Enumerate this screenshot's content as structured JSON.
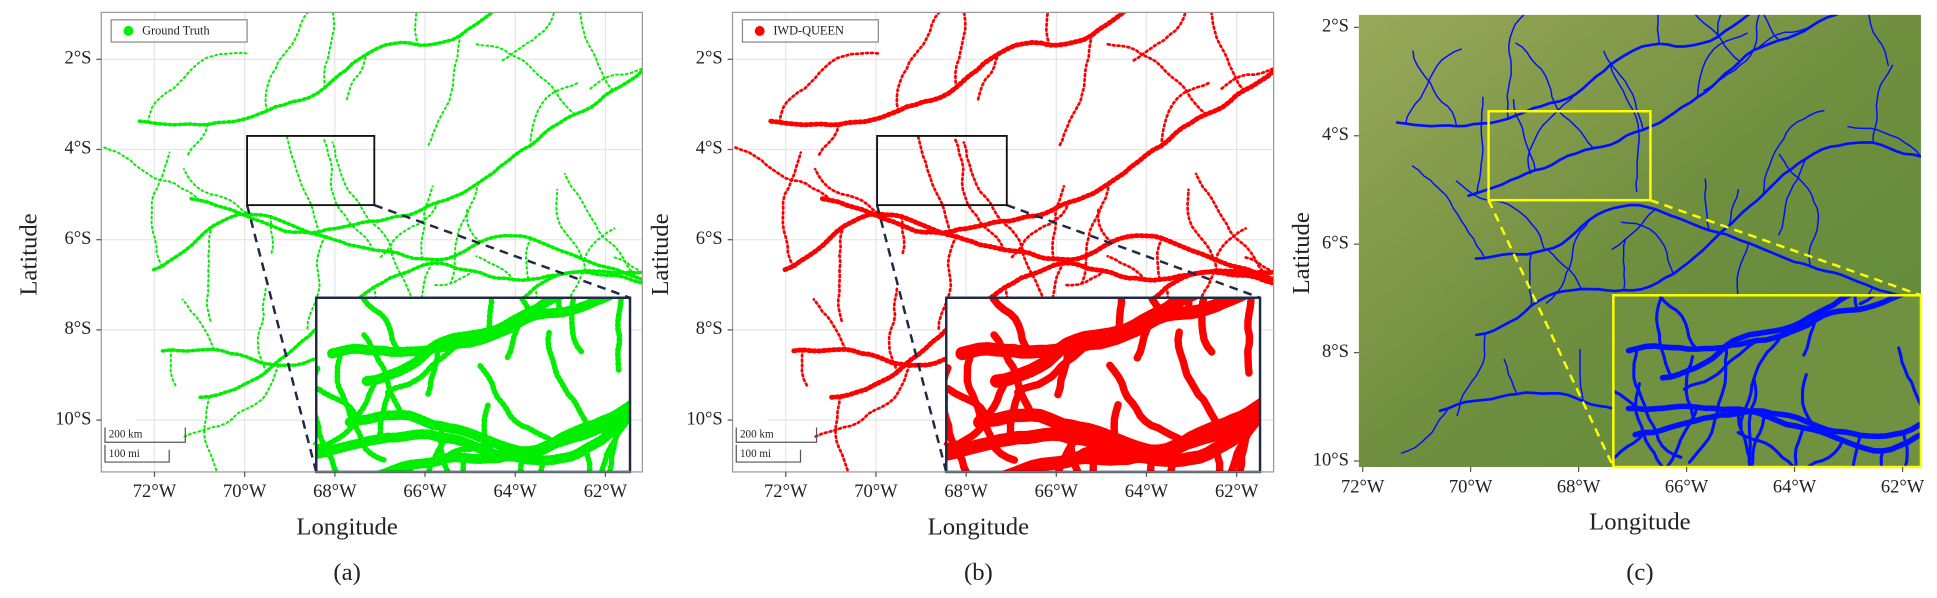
{
  "panels": [
    {
      "type": "map",
      "legend": "Ground Truth",
      "color": "#00ee00",
      "style": "points",
      "xlabel": "Longitude",
      "ylabel": "Latitude",
      "grid": true,
      "xlim": [
        -73.18,
        -61.18
      ],
      "ylim": [
        -11.15,
        -0.96
      ],
      "xticks": [
        {
          "value": -72,
          "label": "72°W"
        },
        {
          "value": -70,
          "label": "70°W"
        },
        {
          "value": -68,
          "label": "68°W"
        },
        {
          "value": -66,
          "label": "66°W"
        },
        {
          "value": -64,
          "label": "64°W"
        },
        {
          "value": -62,
          "label": "62°W"
        }
      ],
      "yticks": [
        {
          "value": -2,
          "label": "2°S"
        },
        {
          "value": -4,
          "label": "4°S"
        },
        {
          "value": -6,
          "label": "6°S"
        },
        {
          "value": -8,
          "label": "8°S"
        },
        {
          "value": -10,
          "label": "10°S"
        }
      ],
      "scale_bar": [
        "200 km",
        "100 mi"
      ],
      "caption": "(a)"
    },
    {
      "type": "map",
      "legend": "IWD-QUEEN",
      "color": "#ff0000",
      "style": "points",
      "xlabel": "Longitude",
      "ylabel": "Latitude",
      "grid": true,
      "xlim": [
        -73.18,
        -61.18
      ],
      "ylim": [
        -11.15,
        -0.96
      ],
      "xticks": [
        {
          "value": -72,
          "label": "72°W"
        },
        {
          "value": -70,
          "label": "70°W"
        },
        {
          "value": -68,
          "label": "68°W"
        },
        {
          "value": -66,
          "label": "66°W"
        },
        {
          "value": -64,
          "label": "64°W"
        },
        {
          "value": -62,
          "label": "62°W"
        }
      ],
      "yticks": [
        {
          "value": -2,
          "label": "2°S"
        },
        {
          "value": -4,
          "label": "4°S"
        },
        {
          "value": -6,
          "label": "6°S"
        },
        {
          "value": -8,
          "label": "8°S"
        },
        {
          "value": -10,
          "label": "10°S"
        }
      ],
      "scale_bar": [
        "200 km",
        "100 mi"
      ],
      "caption": "(b)"
    },
    {
      "type": "terrain",
      "color": "#0010ff",
      "xlabel": "Longitude",
      "ylabel": "Latitude",
      "grid": false,
      "xlim": [
        -72.07,
        -61.66
      ],
      "ylim": [
        -10.11,
        -1.77
      ],
      "xticks": [
        {
          "value": -72,
          "label": "72°W"
        },
        {
          "value": -70,
          "label": "70°W"
        },
        {
          "value": -68,
          "label": "68°W"
        },
        {
          "value": -66,
          "label": "66°W"
        },
        {
          "value": -64,
          "label": "64°W"
        },
        {
          "value": -62,
          "label": "62°W"
        }
      ],
      "yticks": [
        {
          "value": -2,
          "label": "2°S"
        },
        {
          "value": -4,
          "label": "4°S"
        },
        {
          "value": -6,
          "label": "6°S"
        },
        {
          "value": -8,
          "label": "8°S"
        },
        {
          "value": -10,
          "label": "10°S"
        }
      ],
      "caption": "(c)"
    }
  ]
}
